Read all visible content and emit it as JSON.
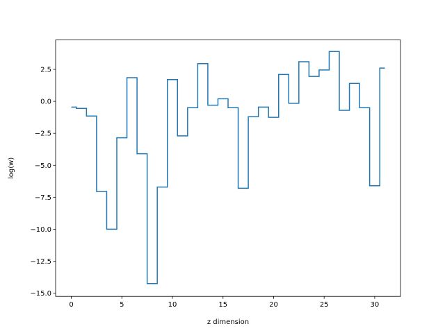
{
  "chart_data": {
    "type": "line",
    "drawstyle": "steps-mid",
    "xlabel": "z dimension",
    "ylabel": "log(w)",
    "xlim": [
      -1.55,
      32.55
    ],
    "ylim": [
      -15.25,
      4.8
    ],
    "xticks": [
      0,
      5,
      10,
      15,
      20,
      25,
      30
    ],
    "xtick_labels": [
      "0",
      "5",
      "10",
      "15",
      "20",
      "25",
      "30"
    ],
    "yticks": [
      -15.0,
      -12.5,
      -10.0,
      -7.5,
      -5.0,
      -2.5,
      0.0,
      2.5
    ],
    "ytick_labels": [
      "−15.0",
      "−12.5",
      "−10.0",
      "−7.5",
      "−5.0",
      "−2.5",
      "0.0",
      "2.5"
    ],
    "grid": false,
    "color": "#1f77b4",
    "series": [
      {
        "x": [
          0,
          1,
          2,
          3,
          4,
          5,
          6,
          7,
          8,
          9,
          10,
          11,
          12,
          13,
          14,
          15,
          16,
          17,
          18,
          19,
          20,
          21,
          22,
          23,
          24,
          25,
          26,
          27,
          28,
          29,
          30,
          31
        ],
        "values": [
          -0.45,
          -0.55,
          -1.15,
          -7.05,
          -10.0,
          -2.85,
          1.85,
          -4.1,
          -14.25,
          -6.7,
          1.7,
          -2.7,
          -0.5,
          2.95,
          -0.3,
          0.2,
          -0.5,
          -6.8,
          -1.2,
          -0.45,
          -1.25,
          2.1,
          -0.15,
          3.1,
          1.95,
          2.45,
          3.9,
          -0.7,
          1.4,
          -0.5,
          -6.6,
          2.6
        ]
      }
    ]
  }
}
